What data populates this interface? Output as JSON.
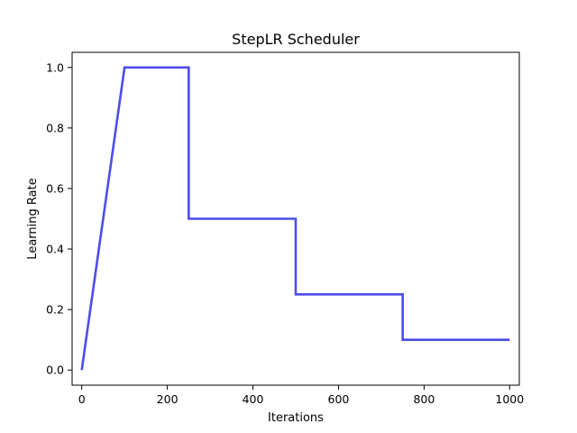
{
  "chart_data": {
    "type": "line",
    "title": "StepLR Scheduler",
    "xlabel": "Iterations",
    "ylabel": "Learning Rate",
    "xlim": [
      -22.5,
      1022.5
    ],
    "ylim": [
      -0.05,
      1.05
    ],
    "xticks": [
      0,
      200,
      400,
      600,
      800,
      1000
    ],
    "yticks": [
      0.0,
      0.2,
      0.4,
      0.6,
      0.8,
      1.0
    ],
    "xtick_labels": [
      "0",
      "200",
      "400",
      "600",
      "800",
      "1000"
    ],
    "ytick_labels": [
      "0.0",
      "0.2",
      "0.4",
      "0.6",
      "0.8",
      "1.0"
    ],
    "grid": false,
    "series": [
      {
        "color": "#4c4cec",
        "x": [
          0,
          100,
          250,
          250,
          500,
          500,
          750,
          750,
          1000
        ],
        "y": [
          0.0,
          1.0,
          1.0,
          0.5,
          0.5,
          0.25,
          0.25,
          0.1,
          0.1
        ]
      }
    ]
  }
}
